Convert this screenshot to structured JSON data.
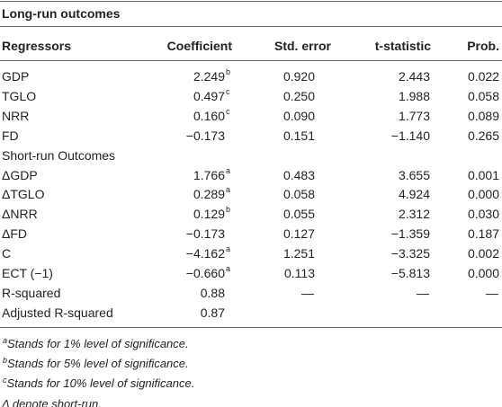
{
  "title": "Long-run outcomes",
  "header": [
    "Regressors",
    "Coefficient",
    "Std. error",
    "t-statistic",
    "Prob."
  ],
  "rows": [
    [
      "GDP",
      {
        "text": "2.249",
        "sup": "b"
      },
      "0.920",
      "2.443",
      "0.022"
    ],
    [
      "TGLO",
      {
        "text": "0.497",
        "sup": "c"
      },
      "0.250",
      "1.988",
      "0.058"
    ],
    [
      "NRR",
      {
        "text": "0.160",
        "sup": "c"
      },
      "0.090",
      "1.773",
      "0.089"
    ],
    [
      "FD",
      "−0.173",
      "0.151",
      "−1.140",
      "0.265"
    ],
    [
      "Short-run Outcomes"
    ],
    [
      "ΔGDP",
      {
        "text": "1.766",
        "sup": "a"
      },
      "0.483",
      "3.655",
      "0.001"
    ],
    [
      "ΔTGLO",
      {
        "text": "0.289",
        "sup": "a"
      },
      "0.058",
      "4.924",
      "0.000"
    ],
    [
      "ΔNRR",
      {
        "text": "0.129",
        "sup": "b"
      },
      "0.055",
      "2.312",
      "0.030"
    ],
    [
      "ΔFD",
      "−0.173",
      "0.127",
      "−1.359",
      "0.187"
    ],
    [
      "C",
      {
        "text": "−4.162",
        "sup": "a"
      },
      "1.251",
      "−3.325",
      "0.002"
    ],
    [
      "ECT (−1)",
      {
        "text": "−0.660",
        "sup": "a"
      },
      "0.113",
      "−5.813",
      "0.000"
    ],
    [
      "R-squared",
      "0.88",
      "—",
      "—",
      "—"
    ],
    [
      "Adjusted R-squared",
      "0.87"
    ]
  ],
  "footnotes": [
    {
      "sup": "a",
      "text": "Stands for 1% level of significance."
    },
    {
      "sup": "b",
      "text": "Stands for 5% level of significance."
    },
    {
      "sup": "c",
      "text": "Stands for 10% level of significance."
    },
    {
      "text": "Δ denote short-run."
    }
  ]
}
